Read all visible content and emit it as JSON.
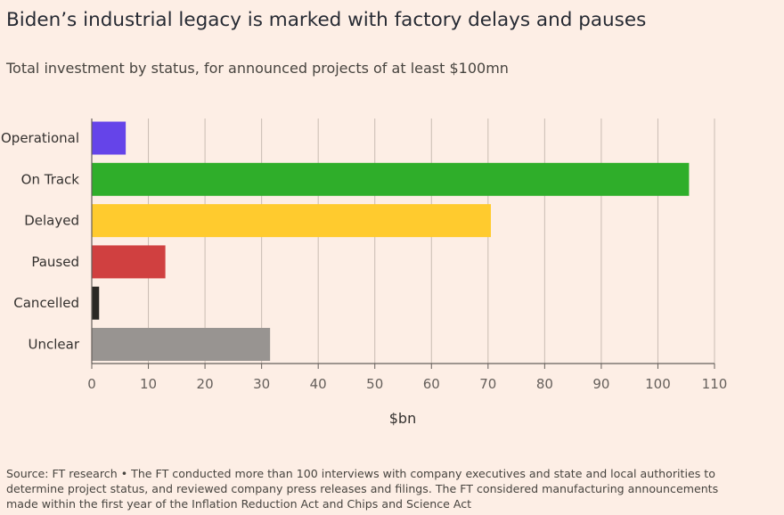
{
  "title": "Biden’s industrial legacy is marked with factory delays and pauses",
  "subtitle": "Total investment by status, for announced projects of at least $100mn",
  "colors": {
    "background": "#fdeee5",
    "gridline": "#c9bcb3",
    "axis": "#66605c",
    "text": "#33302e",
    "tick_text": "#66605c"
  },
  "chart_data": {
    "type": "bar",
    "orientation": "horizontal",
    "categories": [
      "Operational",
      "On Track",
      "Delayed",
      "Paused",
      "Cancelled",
      "Unclear"
    ],
    "values": [
      6,
      105.5,
      70.5,
      13,
      1.3,
      31.5
    ],
    "colors": [
      "#6544e9",
      "#2fae2a",
      "#ffcb2e",
      "#d04040",
      "#2a2824",
      "#989491"
    ],
    "xlim": [
      0,
      110
    ],
    "xticks": [
      0,
      10,
      20,
      30,
      40,
      50,
      60,
      70,
      80,
      90,
      100,
      110
    ],
    "xlabel": "$bn",
    "ylabel": "",
    "grid": true
  },
  "source": {
    "lines": [
      "Source: FT research • The FT conducted more than 100 interviews with company executives and state and local authorities to",
      "determine project status, and reviewed company press releases and filings. The FT considered manufacturing announcements",
      "made within the first year of the Inflation Reduction Act and Chips and Science Act"
    ]
  }
}
